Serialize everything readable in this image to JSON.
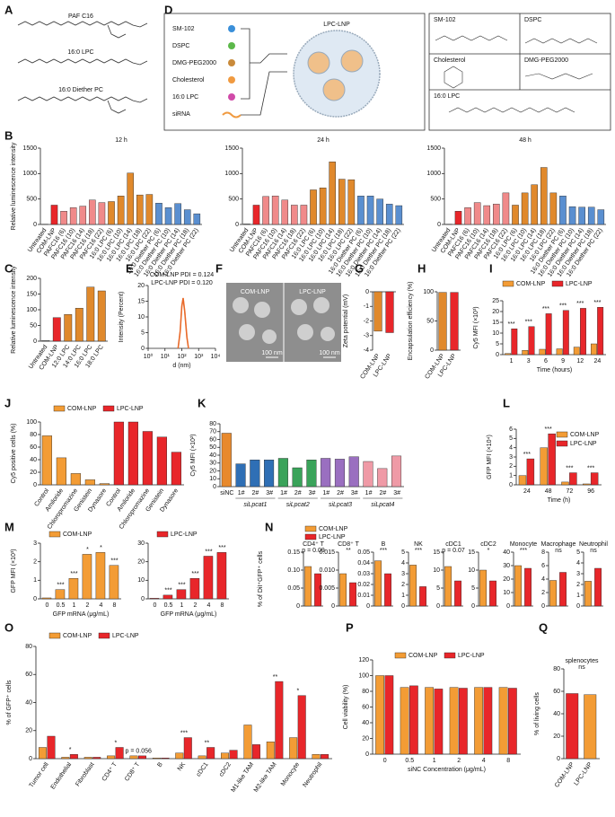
{
  "panel_labels": [
    "A",
    "B",
    "C",
    "D",
    "E",
    "F",
    "G",
    "H",
    "I",
    "J",
    "K",
    "L",
    "M",
    "N",
    "O",
    "P",
    "Q"
  ],
  "A": {
    "molecules": [
      "PAF C16",
      "16:0 LPC",
      "16:0 Diether PC"
    ]
  },
  "D": {
    "components": [
      "SM-102",
      "DSPC",
      "DMG-PEG2000",
      "Cholesterol",
      "16:0 LPC",
      "siRNA"
    ],
    "product": "LPC-LNP",
    "structures": [
      "SM-102",
      "DSPC",
      "Cholesterol",
      "DMG-PEG2000",
      "16:0 LPC"
    ]
  },
  "F": {
    "labels": [
      "COM-LNP",
      "LPC-LNP"
    ],
    "scale_bar": "100 nm"
  },
  "legend_N": [
    {
      "name": "COM-LNP",
      "color": "#f39c35"
    },
    {
      "name": "LPC-LNP",
      "color": "#e8262a"
    }
  ],
  "chart_data": [
    {
      "type": "bar",
      "title": "12 h",
      "ylabel": "Relative luminescence intensity",
      "ylim": [
        0,
        1500
      ],
      "yticks": [
        0,
        500,
        1000,
        1500
      ],
      "categories": [
        "Untreated",
        "COM-LNP",
        "PAFC16 (6)",
        "PAFC16 (10)",
        "PAFC16 (14)",
        "PAFC16 (18)",
        "PAFC16 (22)",
        "16:0 LPC (6)",
        "16:0 LPC (10)",
        "16:0 LPC (14)",
        "16:0 LPC (18)",
        "16:0 LPC (22)",
        "16:0 Diether PC (6)",
        "16:0 Diether PC (10)",
        "16:0 Diether PC (14)",
        "16:0 Diether PC (18)",
        "16:0 Diether PC (22)"
      ],
      "values": [
        5,
        380,
        260,
        330,
        360,
        480,
        430,
        450,
        560,
        1010,
        580,
        590,
        420,
        330,
        410,
        290,
        210
      ],
      "colors": [
        "#9e9e9e",
        "#e8262a",
        "#f08a8a",
        "#f08a8a",
        "#f08a8a",
        "#f08a8a",
        "#f08a8a",
        "#e0892c",
        "#e0892c",
        "#e0892c",
        "#e0892c",
        "#e0892c",
        "#5a8fd0",
        "#5a8fd0",
        "#5a8fd0",
        "#5a8fd0",
        "#5a8fd0"
      ]
    },
    {
      "type": "bar",
      "title": "24 h",
      "ylim": [
        0,
        1500
      ],
      "yticks": [
        0,
        500,
        1000,
        1500
      ],
      "categories": [
        "Untreated",
        "COM-LNP",
        "PAFC16 (6)",
        "PAFC16 (10)",
        "PAFC16 (14)",
        "PAFC16 (18)",
        "PAFC16 (22)",
        "16:0 LPC (6)",
        "16:0 LPC (10)",
        "16:0 LPC (14)",
        "16:0 LPC (18)",
        "16:0 LPC (22)",
        "16:0 Diether PC (6)",
        "16:0 Diether PC (10)",
        "16:0 Diether PC (14)",
        "16:0 Diether PC (18)",
        "16:0 Diether PC (22)"
      ],
      "values": [
        10,
        380,
        550,
        560,
        480,
        380,
        380,
        680,
        720,
        1230,
        890,
        880,
        560,
        560,
        500,
        400,
        370
      ],
      "colors": [
        "#9e9e9e",
        "#e8262a",
        "#f08a8a",
        "#f08a8a",
        "#f08a8a",
        "#f08a8a",
        "#f08a8a",
        "#e0892c",
        "#e0892c",
        "#e0892c",
        "#e0892c",
        "#e0892c",
        "#5a8fd0",
        "#5a8fd0",
        "#5a8fd0",
        "#5a8fd0",
        "#5a8fd0"
      ]
    },
    {
      "type": "bar",
      "title": "48 h",
      "ylim": [
        0,
        1500
      ],
      "yticks": [
        0,
        500,
        1000,
        1500
      ],
      "categories": [
        "Untreated",
        "COM-LNP",
        "PAFC16 (6)",
        "PAFC16 (10)",
        "PAFC16 (14)",
        "PAFC16 (18)",
        "PAFC16 (22)",
        "16:0 LPC (6)",
        "16:0 LPC (10)",
        "16:0 LPC (14)",
        "16:0 LPC (18)",
        "16:0 LPC (22)",
        "16:0 Diether PC (6)",
        "16:0 Diether PC (10)",
        "16:0 Diether PC (14)",
        "16:0 Diether PC (18)",
        "16:0 Diether PC (22)"
      ],
      "values": [
        5,
        260,
        330,
        430,
        370,
        400,
        620,
        380,
        620,
        780,
        1120,
        620,
        560,
        350,
        340,
        340,
        290
      ],
      "colors": [
        "#9e9e9e",
        "#e8262a",
        "#f08a8a",
        "#f08a8a",
        "#f08a8a",
        "#f08a8a",
        "#f08a8a",
        "#e0892c",
        "#e0892c",
        "#e0892c",
        "#e0892c",
        "#e0892c",
        "#5a8fd0",
        "#5a8fd0",
        "#5a8fd0",
        "#5a8fd0",
        "#5a8fd0"
      ]
    },
    {
      "type": "bar",
      "ylabel": "Relative luminescence intensity",
      "ylim": [
        0,
        200
      ],
      "yticks": [
        0,
        50,
        100,
        150,
        200
      ],
      "categories": [
        "Untreated",
        "COM-LNP",
        "12:0 LPC",
        "14:0 LPC",
        "16:0 LPC",
        "18:0 LPC"
      ],
      "values": [
        2,
        75,
        85,
        105,
        172,
        160
      ],
      "colors": [
        "#9e9e9e",
        "#e8262a",
        "#e0892c",
        "#e0892c",
        "#e0892c",
        "#e0892c"
      ]
    },
    {
      "type": "line",
      "xlabel": "d (nm)",
      "ylabel": "Intensity (Percent)",
      "xlog": true,
      "xlim": [
        1,
        10000
      ],
      "xticks": [
        {
          "value": 1,
          "label": "10⁰"
        },
        {
          "value": 10,
          "label": "10¹"
        },
        {
          "value": 100,
          "label": "10²"
        },
        {
          "value": 1000,
          "label": "10³"
        },
        {
          "value": 10000,
          "label": "10⁴"
        }
      ],
      "ylim": [
        0,
        20
      ],
      "yticks": [
        0,
        5,
        10,
        15,
        20
      ],
      "annotations": [
        "COM-LNP PDI = 0.124",
        "LPC-LNP PDI = 0.120"
      ],
      "x": [
        60,
        80,
        100,
        120,
        150,
        200,
        250
      ],
      "series": [
        {
          "color": "#f7b98a",
          "values": [
            0,
            5,
            13,
            16,
            12,
            4,
            0
          ]
        },
        {
          "color": "#e8692a",
          "values": [
            0,
            5.5,
            13.5,
            16,
            11.5,
            3.5,
            0
          ]
        }
      ]
    },
    {
      "type": "bar",
      "ylabel": "Zeta potential (mV)",
      "ylim": [
        -4,
        0
      ],
      "yticks": [
        0,
        -1,
        -2,
        -3,
        -4
      ],
      "categories": [
        "COM-LNP",
        "LPC-LNP"
      ],
      "values": [
        -2.7,
        -2.8
      ],
      "colors": [
        "#e0892c",
        "#e8262a"
      ]
    },
    {
      "type": "bar",
      "ylabel": "Encapsulation efficiency (%)",
      "ylim": [
        0,
        100
      ],
      "yticks": [
        0,
        50,
        100
      ],
      "categories": [
        "COM-LNP",
        "LPC-LNP"
      ],
      "values": [
        99,
        99
      ],
      "colors": [
        "#e0892c",
        "#e8262a"
      ]
    },
    {
      "type": "bar",
      "ylabel": "Cy5 MFI (×10³)",
      "xlabel": "Time (hours)",
      "ylim": [
        0,
        25
      ],
      "yticks": [
        0,
        5,
        10,
        15,
        20,
        25
      ],
      "categories": [
        "1",
        "3",
        "6",
        "9",
        "12",
        "24"
      ],
      "series": [
        {
          "name": "COM-LNP",
          "color": "#f39c35",
          "values": [
            0.5,
            2,
            2.5,
            2.7,
            3.5,
            5
          ]
        },
        {
          "name": "LPC-LNP",
          "color": "#e8262a",
          "values": [
            12,
            13,
            19,
            20.5,
            21.5,
            22
          ]
        }
      ],
      "significance": [
        "***",
        "***",
        "***",
        "***",
        "***",
        "***"
      ]
    },
    {
      "type": "bar",
      "ylabel": "Cy5 positive cells (%)",
      "ylim": [
        0,
        100
      ],
      "yticks": [
        0,
        20,
        40,
        60,
        80,
        100
      ],
      "categories": [
        "Control",
        "Amiloride",
        "Chloropromazine",
        "Genistein",
        "Dynasore",
        "Control",
        "Amiloride",
        "Chloropromazine",
        "Genistein",
        "Dynasore"
      ],
      "series": [
        {
          "name": "COM-LNP",
          "color": "#f39c35",
          "values": [
            78,
            43,
            18,
            8,
            2,
            null,
            null,
            null,
            null,
            null
          ]
        },
        {
          "name": "LPC-LNP",
          "color": "#e8262a",
          "values": [
            null,
            null,
            null,
            null,
            null,
            100,
            100,
            85,
            76,
            52
          ]
        }
      ]
    },
    {
      "type": "bar",
      "ylabel": "Cy5 MFI (×10²)",
      "ylim": [
        0,
        80
      ],
      "yticks": [
        0,
        10,
        20,
        30,
        40,
        50,
        60,
        70,
        80
      ],
      "categories": [
        "siNC",
        "1#",
        "2#",
        "3#",
        "1#",
        "2#",
        "3#",
        "1#",
        "2#",
        "3#",
        "1#",
        "2#",
        "3#"
      ],
      "group_labels": [
        "siLpcat1",
        "siLpcat2",
        "siLpcat3",
        "siLpcat4"
      ],
      "values": [
        68,
        29,
        34,
        34,
        36,
        24,
        34,
        36,
        35,
        38,
        32,
        23,
        39
      ],
      "colors": [
        "#e8892c",
        "#2f6fb5",
        "#2f6fb5",
        "#2f6fb5",
        "#3aa35a",
        "#3aa35a",
        "#3aa35a",
        "#9a6fc0",
        "#9a6fc0",
        "#9a6fc0",
        "#ef9aa6",
        "#ef9aa6",
        "#ef9aa6"
      ]
    },
    {
      "type": "bar",
      "ylabel": "GFP MFI (×10⁴)",
      "xlabel": "Time (h)",
      "ylim": [
        0,
        6
      ],
      "yticks": [
        0,
        1,
        2,
        3,
        4,
        5,
        6
      ],
      "categories": [
        "24",
        "48",
        "72",
        "96"
      ],
      "series": [
        {
          "name": "COM-LNP",
          "color": "#f39c35",
          "values": [
            1,
            4,
            0.3,
            0.1
          ]
        },
        {
          "name": "LPC-LNP",
          "color": "#e8262a",
          "values": [
            2.8,
            5.5,
            1.3,
            1.3
          ]
        }
      ],
      "significance": [
        "***",
        "***",
        "***",
        "***"
      ]
    },
    {
      "type": "bar",
      "ylabel": "GFP MFI (×10³)",
      "xlabel": "GFP mRNA (μg/mL)",
      "ylim": [
        0,
        3
      ],
      "yticks": [
        0,
        1,
        2,
        3
      ],
      "categories": [
        "0",
        "0.5",
        "1",
        "2",
        "4",
        "8"
      ],
      "series": [
        {
          "name": "COM-LNP",
          "color": "#f39c35",
          "values": [
            0.05,
            0.5,
            1.1,
            2.4,
            2.5,
            1.8
          ]
        }
      ],
      "significance": [
        null,
        "***",
        "***",
        "*",
        "*",
        "***"
      ]
    },
    {
      "type": "bar",
      "xlabel": "GFP mRNA (μg/mL)",
      "ylim": [
        0,
        30
      ],
      "yticks": [
        0,
        10,
        20,
        30
      ],
      "categories": [
        "0",
        "0.5",
        "1",
        "2",
        "4",
        "8"
      ],
      "series": [
        {
          "name": "LPC-LNP",
          "color": "#e8262a",
          "values": [
            0.3,
            2,
            5,
            11,
            23,
            25
          ]
        }
      ],
      "significance": [
        null,
        "***",
        "***",
        "***",
        "***",
        "***"
      ]
    },
    {
      "type": "bar",
      "title": "CD4⁺ T",
      "ylabel": "% of DiI⁺GFP⁺ cells",
      "annotation": "p = 0.09",
      "ylim": [
        0,
        0.15
      ],
      "yticks": [
        0,
        0.05,
        {
          "value": 0.1,
          "label": "0.10"
        },
        0.15
      ],
      "values": [
        0.11,
        0.09
      ],
      "colors": [
        "#f39c35",
        "#e8262a"
      ]
    },
    {
      "type": "bar",
      "title": "CD8⁺ T",
      "annotation": "**",
      "ylim": [
        0,
        0.015
      ],
      "yticks": [
        0,
        0.005,
        {
          "value": 0.01,
          "label": "0.010"
        },
        0.015
      ],
      "values": [
        0.009,
        0.0065
      ],
      "colors": [
        "#f39c35",
        "#e8262a"
      ]
    },
    {
      "type": "bar",
      "title": "B",
      "annotation": "***",
      "ylim": [
        0,
        0.05
      ],
      "yticks": [
        0,
        0.01,
        0.02,
        0.03,
        0.04,
        0.05
      ],
      "values": [
        0.042,
        0.03
      ],
      "colors": [
        "#f39c35",
        "#e8262a"
      ]
    },
    {
      "type": "bar",
      "title": "NK",
      "annotation": "***",
      "ylim": [
        0,
        5
      ],
      "yticks": [
        0,
        1,
        2,
        3,
        4,
        5
      ],
      "values": [
        3.8,
        1.8
      ],
      "colors": [
        "#f39c35",
        "#e8262a"
      ]
    },
    {
      "type": "bar",
      "title": "cDC1",
      "annotation": "p = 0.07",
      "ylim": [
        0,
        15
      ],
      "yticks": [
        0,
        5,
        10,
        15
      ],
      "values": [
        11,
        7
      ],
      "colors": [
        "#f39c35",
        "#e8262a"
      ]
    },
    {
      "type": "bar",
      "title": "cDC2",
      "annotation": "*",
      "ylim": [
        0,
        15
      ],
      "yticks": [
        0,
        5,
        10,
        15
      ],
      "values": [
        10,
        7
      ],
      "colors": [
        "#f39c35",
        "#e8262a"
      ]
    },
    {
      "type": "bar",
      "title": "Monocyte",
      "annotation": "***",
      "ylim": [
        0,
        40
      ],
      "yticks": [
        0,
        10,
        20,
        30,
        40
      ],
      "values": [
        30,
        28
      ],
      "colors": [
        "#f39c35",
        "#e8262a"
      ]
    },
    {
      "type": "bar",
      "title": "Macrophage",
      "annotation": "ns",
      "ylim": [
        0,
        8
      ],
      "yticks": [
        0,
        2,
        4,
        6,
        8
      ],
      "values": [
        3.8,
        5
      ],
      "colors": [
        "#f39c35",
        "#e8262a"
      ]
    },
    {
      "type": "bar",
      "title": "Neutrophil",
      "annotation": "ns",
      "ylim": [
        0,
        5
      ],
      "yticks": [
        0,
        1,
        2,
        3,
        4,
        5
      ],
      "values": [
        2.3,
        3.5
      ],
      "colors": [
        "#f39c35",
        "#e8262a"
      ]
    },
    {
      "type": "bar",
      "ylabel": "% of GFP⁺ cells",
      "ylim": [
        0,
        80
      ],
      "yticks": [
        0,
        20,
        40,
        60,
        80
      ],
      "categories": [
        "Tumor cell",
        "Endothelial",
        "Fibroblast",
        "CD4⁺ T",
        "CD8⁺ T",
        "B",
        "NK",
        "cDC1",
        "cDC2",
        "M1-like TAM",
        "M2-like TAM",
        "Monocyte",
        "Neutrophil"
      ],
      "series": [
        {
          "name": "COM-LNP",
          "color": "#f39c35",
          "values": [
            8,
            1,
            1,
            2,
            2,
            0.5,
            4,
            2,
            4,
            24,
            12,
            15,
            3
          ]
        },
        {
          "name": "LPC-LNP",
          "color": "#e8262a",
          "values": [
            16,
            3,
            1,
            8,
            2,
            0.5,
            15,
            8,
            6,
            10,
            55,
            45,
            3
          ]
        }
      ],
      "significance": [
        null,
        "*",
        null,
        "*",
        "p = 0.056",
        null,
        "***",
        "**",
        null,
        null,
        "**",
        "*",
        null
      ]
    },
    {
      "type": "bar",
      "ylabel": "Cell viability (%)",
      "xlabel": "siNC Concentration (μg/mL)",
      "ylim": [
        0,
        120
      ],
      "yticks": [
        0,
        20,
        40,
        60,
        80,
        100,
        120
      ],
      "categories": [
        "0",
        "0.5",
        "1",
        "2",
        "4",
        "8"
      ],
      "series": [
        {
          "name": "COM-LNP",
          "color": "#f39c35",
          "values": [
            100,
            85,
            85,
            85,
            85,
            85
          ]
        },
        {
          "name": "LPC-LNP",
          "color": "#e8262a",
          "values": [
            100,
            87,
            83,
            84,
            85,
            84
          ]
        }
      ]
    },
    {
      "type": "bar",
      "title": "splenocytes",
      "annotation": "ns",
      "ylabel": "% of living cells",
      "ylim": [
        0,
        80
      ],
      "yticks": [
        0,
        20,
        40,
        60,
        80
      ],
      "categories": [
        "COM-LNP",
        "LPC-LNP"
      ],
      "values": [
        58,
        57
      ],
      "colors": [
        "#e8262a",
        "#f39c35"
      ]
    }
  ]
}
